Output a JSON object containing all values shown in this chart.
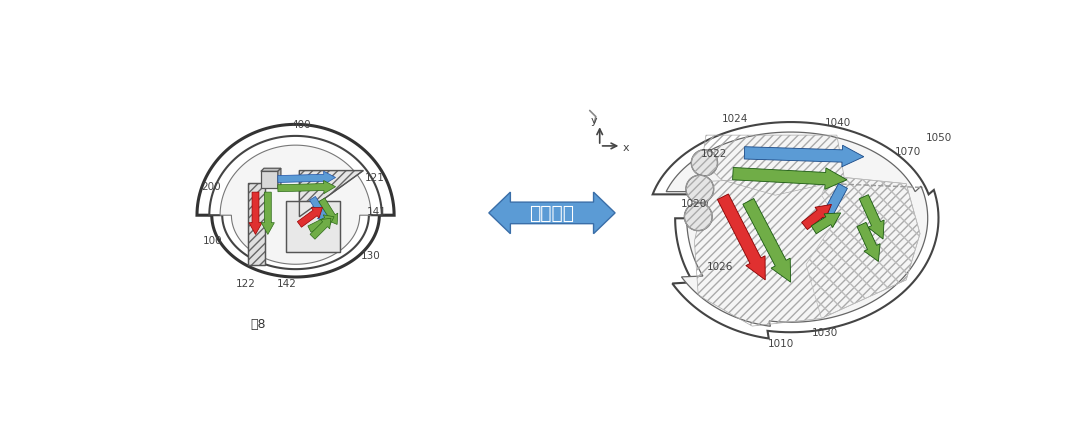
{
  "bg_color": "#ffffff",
  "arrow_blue": "#5B9BD5",
  "arrow_green": "#70AD47",
  "arrow_red": "#E03030",
  "double_arrow_color": "#5B9BD5",
  "text_color": "#404040",
  "title": "近似等效",
  "fig_label": "图8",
  "hatch_color": "#aaaaaa",
  "line_color": "#555555"
}
